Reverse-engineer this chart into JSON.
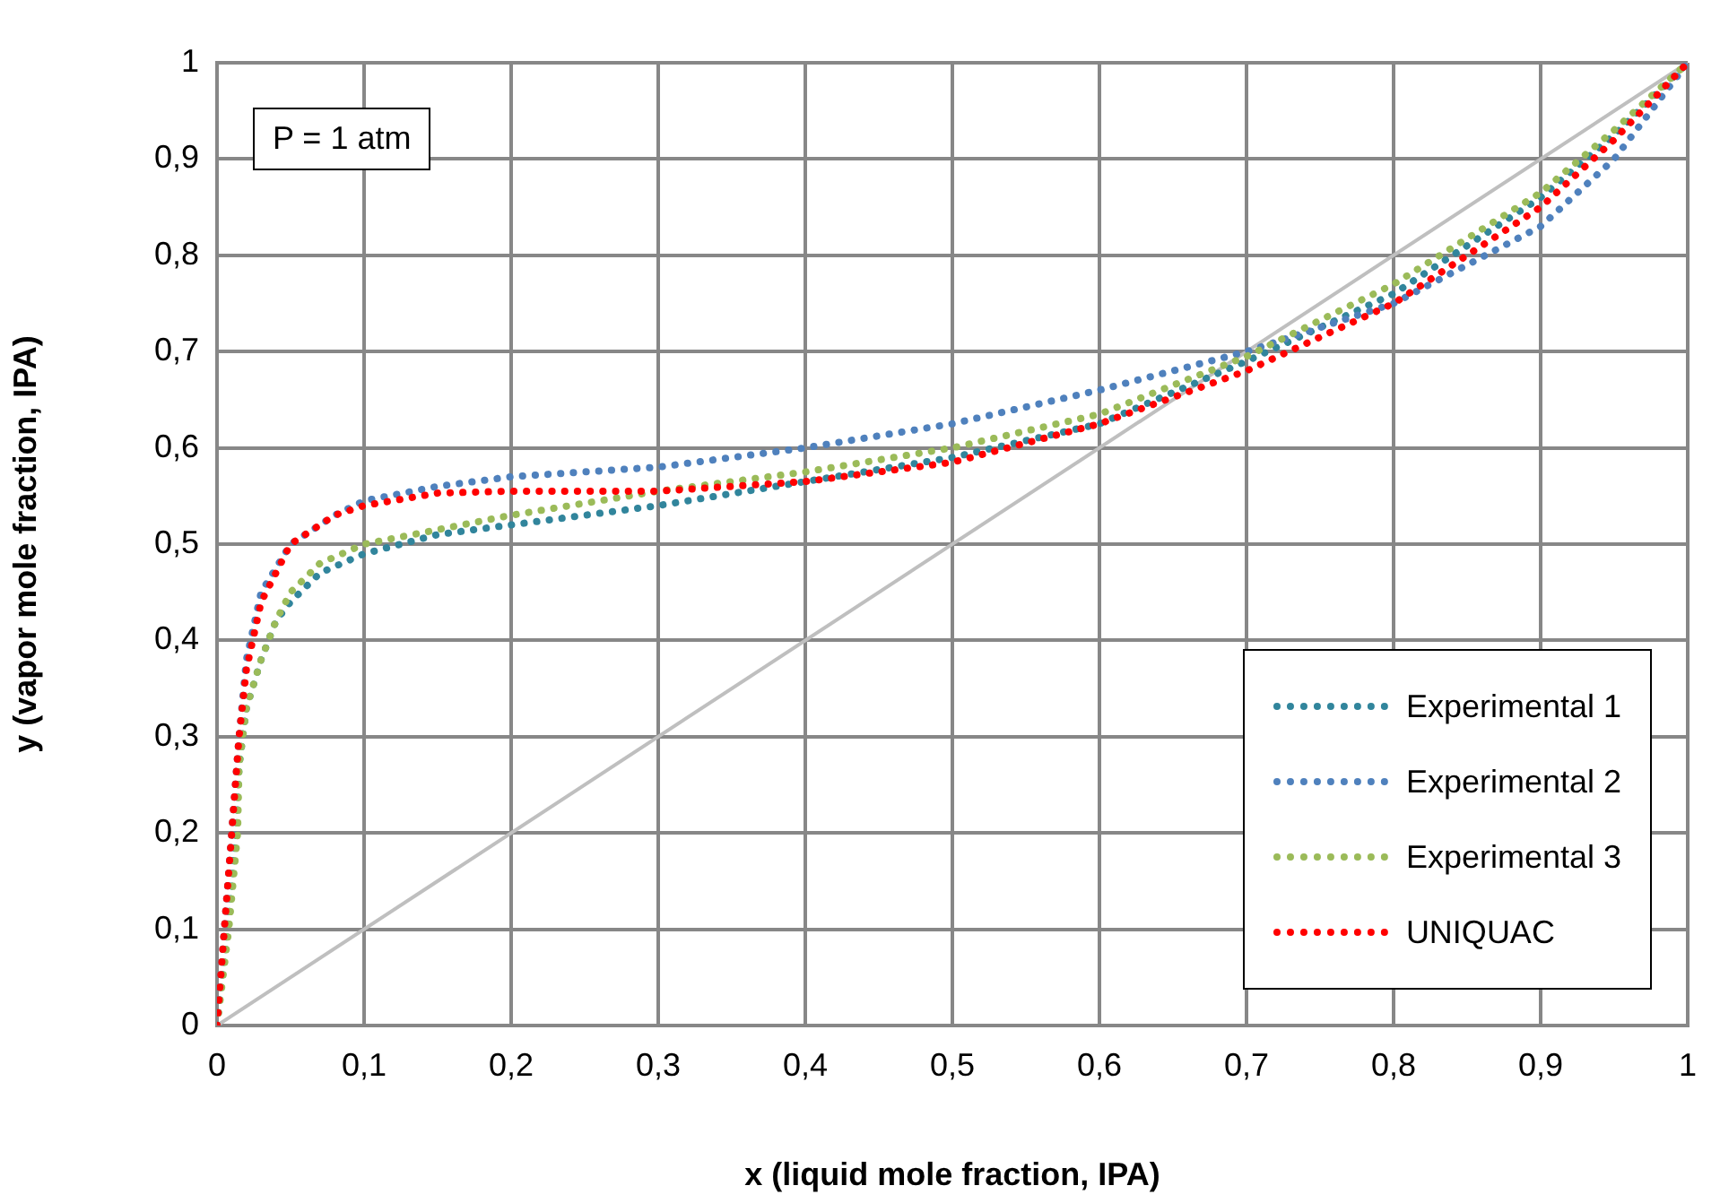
{
  "chart_data": {
    "type": "line",
    "xlabel": "x (liquid mole fraction, IPA)",
    "ylabel": "y (vapor mole fraction, IPA)",
    "xlim": [
      0,
      1
    ],
    "ylim": [
      0,
      1
    ],
    "xticks": [
      0,
      {
        "value": 0.1,
        "label": "0,1"
      },
      {
        "value": 0.2,
        "label": "0,2"
      },
      {
        "value": 0.3,
        "label": "0,3"
      },
      {
        "value": 0.4,
        "label": "0,4"
      },
      {
        "value": 0.5,
        "label": "0,5"
      },
      {
        "value": 0.6,
        "label": "0,6"
      },
      {
        "value": 0.7,
        "label": "0,7"
      },
      {
        "value": 0.8,
        "label": "0,8"
      },
      {
        "value": 0.9,
        "label": "0,9"
      },
      1
    ],
    "yticks": [
      0,
      {
        "value": 0.1,
        "label": "0,1"
      },
      {
        "value": 0.2,
        "label": "0,2"
      },
      {
        "value": 0.3,
        "label": "0,3"
      },
      {
        "value": 0.4,
        "label": "0,4"
      },
      {
        "value": 0.5,
        "label": "0,5"
      },
      {
        "value": 0.6,
        "label": "0,6"
      },
      {
        "value": 0.7,
        "label": "0,7"
      },
      {
        "value": 0.8,
        "label": "0,8"
      },
      {
        "value": 0.9,
        "label": "0,9"
      },
      1
    ],
    "grid": true,
    "legend": "bottom right",
    "marker": "none",
    "annotations": [
      "P = 1 atm"
    ],
    "series": [
      {
        "color": "#bfbfbf",
        "line_style": "solid",
        "x": [
          0,
          1
        ],
        "values": [
          0,
          1
        ]
      },
      {
        "name": "Experimental 1",
        "color": "#31859c",
        "line_style": "dotted",
        "x": [
          0,
          0.007,
          0.013,
          0.015,
          0.02,
          0.03,
          0.04,
          0.05,
          0.07,
          0.1,
          0.15,
          0.2,
          0.3,
          0.4,
          0.5,
          0.6,
          0.7,
          0.8,
          0.9,
          0.95,
          1
        ],
        "values": [
          0,
          0.1,
          0.2,
          0.27,
          0.33,
          0.38,
          0.42,
          0.44,
          0.47,
          0.49,
          0.51,
          0.52,
          0.54,
          0.565,
          0.59,
          0.625,
          0.69,
          0.76,
          0.86,
          0.925,
          1
        ]
      },
      {
        "name": "Experimental 2",
        "color": "#4f81bd",
        "line_style": "dotted",
        "x": [
          0,
          0.005,
          0.01,
          0.015,
          0.02,
          0.03,
          0.05,
          0.08,
          0.1,
          0.15,
          0.2,
          0.3,
          0.4,
          0.5,
          0.6,
          0.7,
          0.8,
          0.85,
          0.9,
          0.95,
          1
        ],
        "values": [
          0,
          0.1,
          0.2,
          0.3,
          0.38,
          0.45,
          0.5,
          0.53,
          0.545,
          0.56,
          0.57,
          0.58,
          0.6,
          0.625,
          0.66,
          0.7,
          0.75,
          0.79,
          0.83,
          0.9,
          1
        ]
      },
      {
        "name": "Experimental 3",
        "color": "#9bbb59",
        "line_style": "dotted",
        "x": [
          0,
          0.008,
          0.014,
          0.015,
          0.02,
          0.03,
          0.04,
          0.05,
          0.07,
          0.1,
          0.15,
          0.2,
          0.3,
          0.4,
          0.5,
          0.6,
          0.7,
          0.8,
          0.9,
          0.95,
          1
        ],
        "values": [
          0,
          0.1,
          0.2,
          0.27,
          0.33,
          0.38,
          0.42,
          0.45,
          0.48,
          0.5,
          0.515,
          0.53,
          0.555,
          0.575,
          0.6,
          0.635,
          0.695,
          0.77,
          0.865,
          0.93,
          1
        ]
      },
      {
        "name": "UNIQUAC",
        "color": "#ff0000",
        "line_style": "dotted",
        "x": [
          0,
          0.005,
          0.01,
          0.015,
          0.02,
          0.03,
          0.05,
          0.08,
          0.1,
          0.15,
          0.2,
          0.3,
          0.4,
          0.5,
          0.6,
          0.7,
          0.8,
          0.9,
          0.95,
          1
        ],
        "values": [
          0,
          0.1,
          0.2,
          0.3,
          0.37,
          0.44,
          0.5,
          0.53,
          0.54,
          0.553,
          0.555,
          0.555,
          0.565,
          0.585,
          0.625,
          0.68,
          0.75,
          0.85,
          0.92,
          1
        ]
      }
    ]
  }
}
